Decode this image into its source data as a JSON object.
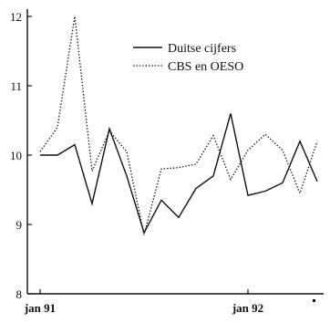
{
  "chart_data": {
    "type": "line",
    "title": "",
    "xlabel": "",
    "ylabel": "",
    "ylim": [
      8,
      12
    ],
    "yticks": [
      "8",
      "9",
      "10",
      "11",
      "12"
    ],
    "x_tick_labels": [
      {
        "label": "jan 91",
        "index": 0
      },
      {
        "label": "jan 92",
        "index": 12
      }
    ],
    "grid": false,
    "legend_position": "top-right",
    "series": [
      {
        "name": "Duitse cijfers",
        "style": "solid",
        "color": "#111111",
        "values": [
          10.0,
          10.0,
          10.15,
          9.3,
          10.38,
          9.7,
          8.88,
          9.35,
          9.1,
          9.52,
          9.7,
          10.6,
          9.42,
          9.48,
          9.6,
          10.2,
          9.62
        ]
      },
      {
        "name": "CBS en OESO",
        "style": "dotted",
        "color": "#111111",
        "values": [
          10.05,
          10.4,
          12.0,
          9.77,
          10.35,
          10.05,
          8.85,
          9.8,
          9.82,
          9.87,
          10.28,
          9.65,
          10.07,
          10.3,
          10.07,
          9.45,
          10.2
        ]
      }
    ]
  }
}
